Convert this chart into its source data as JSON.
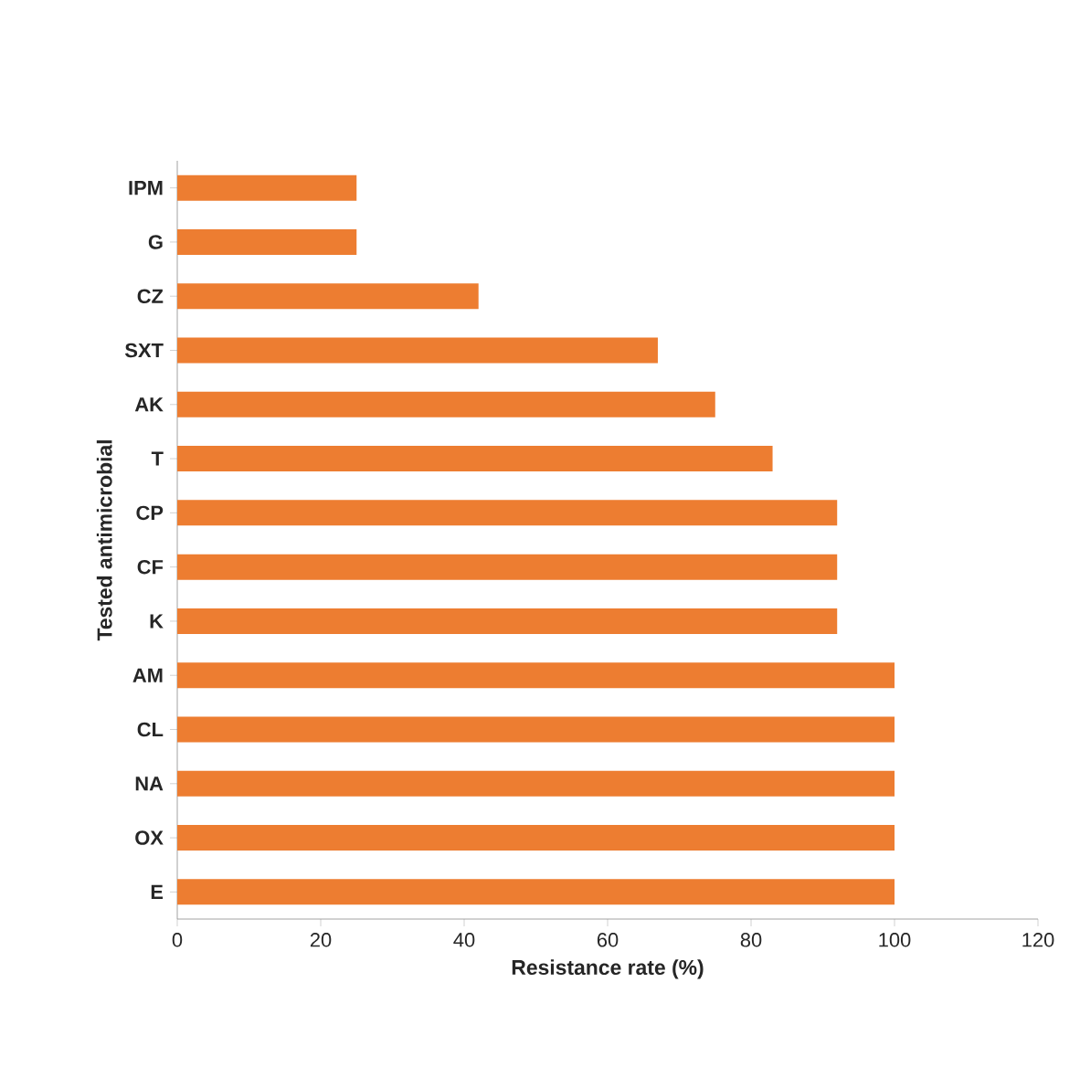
{
  "chart_data": {
    "type": "bar",
    "orientation": "horizontal",
    "xlabel": "Resistance rate (%)",
    "ylabel": "Tested antimicrobial",
    "categories": [
      "IPM",
      "G",
      "CZ",
      "SXT",
      "AK",
      "T",
      "CP",
      "CF",
      "K",
      "AM",
      "CL",
      "NA",
      "OX",
      "E"
    ],
    "values": [
      25,
      25,
      42,
      67,
      75,
      83,
      92,
      92,
      92,
      100,
      100,
      100,
      100,
      100
    ],
    "color": "#ed7d31",
    "xlim": [
      0,
      120
    ],
    "xticks": [
      0,
      20,
      40,
      60,
      80,
      100,
      120
    ]
  }
}
